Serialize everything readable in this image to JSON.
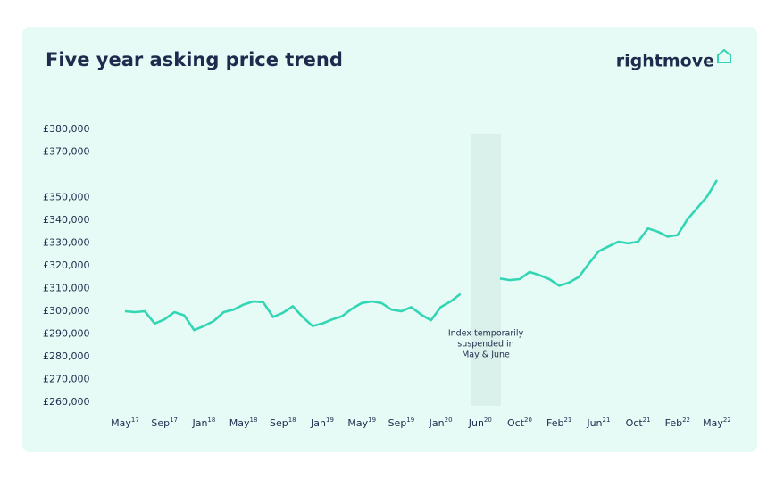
{
  "chart_data": {
    "type": "line",
    "title": "Five year asking price trend",
    "logo": "rightmove",
    "annotation": [
      "Index temporarily",
      "suspended in",
      "May & June"
    ],
    "categories": [
      {
        "month": "May",
        "year": "17"
      },
      null,
      null,
      null,
      {
        "month": "Sep",
        "year": "17"
      },
      null,
      null,
      null,
      {
        "month": "Jan",
        "year": "18"
      },
      null,
      null,
      null,
      {
        "month": "May",
        "year": "18"
      },
      null,
      null,
      null,
      {
        "month": "Sep",
        "year": "18"
      },
      null,
      null,
      null,
      {
        "month": "Jan",
        "year": "19"
      },
      null,
      null,
      null,
      {
        "month": "May",
        "year": "19"
      },
      null,
      null,
      null,
      {
        "month": "Sep",
        "year": "19"
      },
      null,
      null,
      null,
      {
        "month": "Jan",
        "year": "20"
      },
      null,
      null,
      null,
      {
        "month": "Jun",
        "year": "20"
      },
      null,
      null,
      null,
      {
        "month": "Oct",
        "year": "20"
      },
      null,
      null,
      null,
      {
        "month": "Feb",
        "year": "21"
      },
      null,
      null,
      null,
      {
        "month": "Jun",
        "year": "21"
      },
      null,
      null,
      null,
      {
        "month": "Oct",
        "year": "21"
      },
      null,
      null,
      null,
      {
        "month": "Feb",
        "year": "22"
      },
      null,
      null,
      null,
      {
        "month": "May",
        "year": "22"
      }
    ],
    "values": [
      300000,
      299600,
      300000,
      294600,
      296400,
      299600,
      298200,
      291700,
      293500,
      295700,
      299600,
      300700,
      302900,
      304300,
      304000,
      297500,
      299300,
      302200,
      297500,
      293500,
      294600,
      296400,
      297800,
      301100,
      303600,
      304300,
      303600,
      300700,
      300000,
      301800,
      298600,
      296000,
      301800,
      304300,
      307600,
      null,
      null,
      null,
      314400,
      313700,
      314100,
      317300,
      315900,
      314100,
      311200,
      312600,
      315100,
      320900,
      326300,
      328500,
      330600,
      329900,
      330600,
      336400,
      335000,
      332800,
      333500,
      340400,
      345400,
      350500,
      357700
    ],
    "color": "#33d6b4",
    "ylim": [
      260000,
      380000
    ],
    "yticks": [
      {
        "value": 380000,
        "label": "£380,000"
      },
      {
        "value": 370000,
        "label": "£370,000"
      },
      {
        "value": 350000,
        "label": "£350,000"
      },
      {
        "value": 340000,
        "label": "£340,000"
      },
      {
        "value": 330000,
        "label": "£330,000"
      },
      {
        "value": 320000,
        "label": "£320,000"
      },
      {
        "value": 310000,
        "label": "£310,000"
      },
      {
        "value": 300000,
        "label": "£300,000"
      },
      {
        "value": 290000,
        "label": "£290,000"
      },
      {
        "value": 280000,
        "label": "£280,000"
      },
      {
        "value": 270000,
        "label": "£270,000"
      },
      {
        "value": 260000,
        "label": "£260,000"
      }
    ],
    "grid": false
  }
}
